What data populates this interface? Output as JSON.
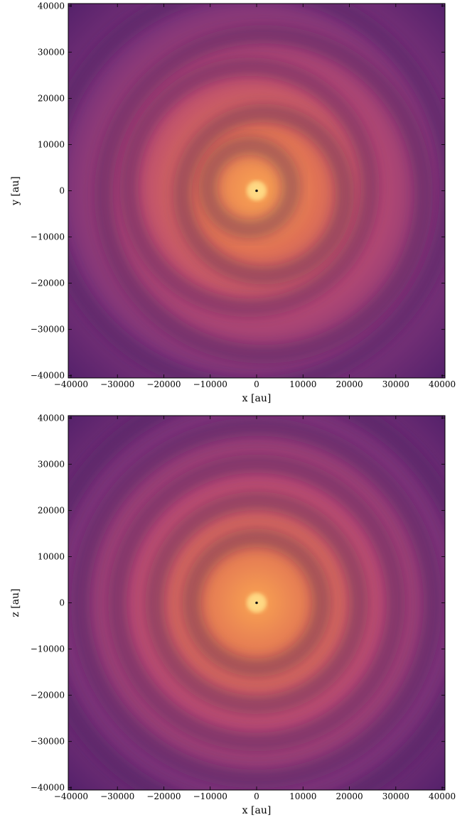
{
  "chart_data": [
    {
      "type": "image",
      "colormap": "magma",
      "pattern": "spiral",
      "xlabel": "x [au]",
      "ylabel": "y [au]",
      "xlim": [
        -40600,
        40600
      ],
      "ylim": [
        -40500,
        40500
      ],
      "xticks": [
        {
          "value": -40000,
          "label": "−40000"
        },
        {
          "value": -30000,
          "label": "−30000"
        },
        {
          "value": -20000,
          "label": "−20000"
        },
        {
          "value": -10000,
          "label": "−10000"
        },
        0,
        10000,
        20000,
        30000,
        40000
      ],
      "yticks": [
        {
          "value": -40000,
          "label": "−40000"
        },
        {
          "value": -30000,
          "label": "−30000"
        },
        {
          "value": -20000,
          "label": "−20000"
        },
        {
          "value": -10000,
          "label": "−10000"
        },
        0,
        10000,
        20000,
        30000,
        40000
      ]
    },
    {
      "type": "image",
      "colormap": "magma",
      "pattern": "rings",
      "xlabel": "x [au]",
      "ylabel": "z [au]",
      "xlim": [
        -40600,
        40600
      ],
      "ylim": [
        -40500,
        40500
      ],
      "xticks": [
        {
          "value": -40000,
          "label": "−40000"
        },
        {
          "value": -30000,
          "label": "−30000"
        },
        {
          "value": -20000,
          "label": "−20000"
        },
        {
          "value": -10000,
          "label": "−10000"
        },
        0,
        10000,
        20000,
        30000,
        40000
      ],
      "yticks": [
        {
          "value": -40000,
          "label": "−40000"
        },
        {
          "value": -30000,
          "label": "−30000"
        },
        {
          "value": -20000,
          "label": "−20000"
        },
        {
          "value": -10000,
          "label": "−10000"
        },
        0,
        10000,
        20000,
        30000,
        40000
      ]
    }
  ]
}
